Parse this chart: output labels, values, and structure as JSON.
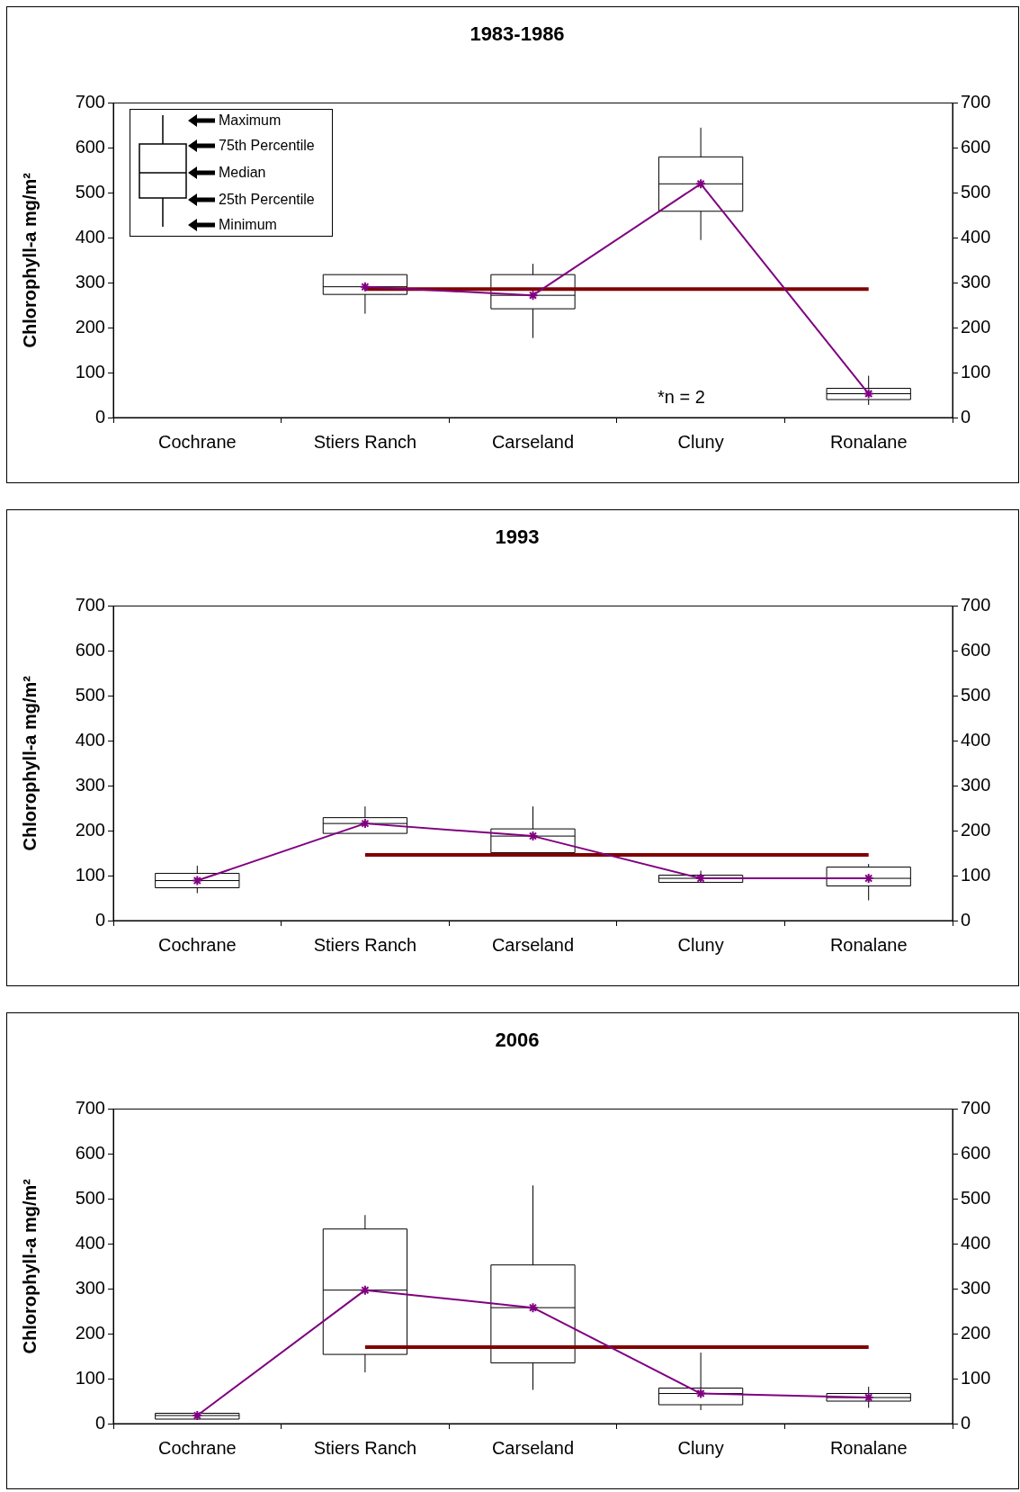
{
  "chart_data": [
    {
      "type": "box",
      "title": "1983-1986",
      "ylabel": "Chlorophyll-a mg/m²",
      "categories": [
        "Cochrane",
        "Stiers Ranch",
        "Carseland",
        "Cluny",
        "Ronalane"
      ],
      "ylim": [
        0,
        700
      ],
      "yticks": [
        0,
        100,
        200,
        300,
        400,
        500,
        600,
        700
      ],
      "y2lim": [
        0,
        700
      ],
      "y2ticks": [
        0,
        100,
        200,
        300,
        400,
        500,
        600,
        700
      ],
      "series": [
        {
          "type": "box",
          "color": "#000000",
          "boxes": [
            null,
            {
              "low": 231,
              "q1": 274,
              "median": 291,
              "q3": 318,
              "high": 318
            },
            {
              "low": 177,
              "q1": 242,
              "median": 272,
              "q3": 318,
              "high": 342
            },
            {
              "low": 395,
              "q1": 459,
              "median": 520,
              "q3": 580,
              "high": 645
            },
            {
              "low": 28,
              "q1": 40,
              "median": 53,
              "q3": 65,
              "high": 93
            }
          ]
        },
        {
          "type": "line",
          "color": "#800080",
          "marker": "cross",
          "values": [
            null,
            291,
            272,
            520,
            53
          ]
        },
        {
          "type": "line",
          "color": "#800000",
          "values": [
            null,
            286,
            286,
            286,
            286
          ]
        }
      ],
      "annotations": [
        "Maximum",
        "75th Percentile",
        "Median",
        "25th Percentile",
        "Minimum",
        "*n = 2"
      ]
    },
    {
      "type": "box",
      "title": "1993",
      "ylabel": "Chlorophyll-a mg/m²",
      "categories": [
        "Cochrane",
        "Stiers Ranch",
        "Carseland",
        "Cluny",
        "Ronalane"
      ],
      "ylim": [
        0,
        700
      ],
      "yticks": [
        0,
        100,
        200,
        300,
        400,
        500,
        600,
        700
      ],
      "y2lim": [
        0,
        700
      ],
      "y2ticks": [
        0,
        100,
        200,
        300,
        400,
        500,
        600,
        700
      ],
      "series": [
        {
          "type": "box",
          "color": "#000000",
          "boxes": [
            {
              "low": 61,
              "q1": 73,
              "median": 89,
              "q3": 105,
              "high": 122
            },
            {
              "low": 194,
              "q1": 194,
              "median": 216,
              "q3": 229,
              "high": 254
            },
            {
              "low": 151,
              "q1": 151,
              "median": 188,
              "q3": 204,
              "high": 254
            },
            {
              "low": 85,
              "q1": 85,
              "median": 94,
              "q3": 101,
              "high": 111
            },
            {
              "low": 45,
              "q1": 77,
              "median": 94,
              "q3": 119,
              "high": 126
            }
          ]
        },
        {
          "type": "line",
          "color": "#800080",
          "marker": "cross",
          "values": [
            89,
            216,
            188,
            94,
            94
          ]
        },
        {
          "type": "line",
          "color": "#800000",
          "values": [
            null,
            146,
            146,
            146,
            146
          ]
        }
      ]
    },
    {
      "type": "box",
      "title": "2006",
      "ylabel": "Chlorophyll-a mg/m²",
      "categories": [
        "Cochrane",
        "Stiers Ranch",
        "Carseland",
        "Cluny",
        "Ronalane"
      ],
      "ylim": [
        0,
        700
      ],
      "yticks": [
        0,
        100,
        200,
        300,
        400,
        500,
        600,
        700
      ],
      "y2lim": [
        0,
        700
      ],
      "y2ticks": [
        0,
        100,
        200,
        300,
        400,
        500,
        600,
        700
      ],
      "series": [
        {
          "type": "box",
          "color": "#000000",
          "boxes": [
            {
              "low": 10,
              "q1": 10,
              "median": 18,
              "q3": 23,
              "high": 23
            },
            {
              "low": 114,
              "q1": 154,
              "median": 297,
              "q3": 433,
              "high": 464
            },
            {
              "low": 75,
              "q1": 135,
              "median": 258,
              "q3": 353,
              "high": 530
            },
            {
              "low": 30,
              "q1": 42,
              "median": 67,
              "q3": 79,
              "high": 158
            },
            {
              "low": 35,
              "q1": 50,
              "median": 58,
              "q3": 67,
              "high": 82
            }
          ]
        },
        {
          "type": "line",
          "color": "#800080",
          "marker": "cross",
          "values": [
            18,
            297,
            258,
            67,
            58
          ]
        },
        {
          "type": "line",
          "color": "#800000",
          "values": [
            null,
            170,
            170,
            170,
            170
          ]
        }
      ]
    }
  ]
}
